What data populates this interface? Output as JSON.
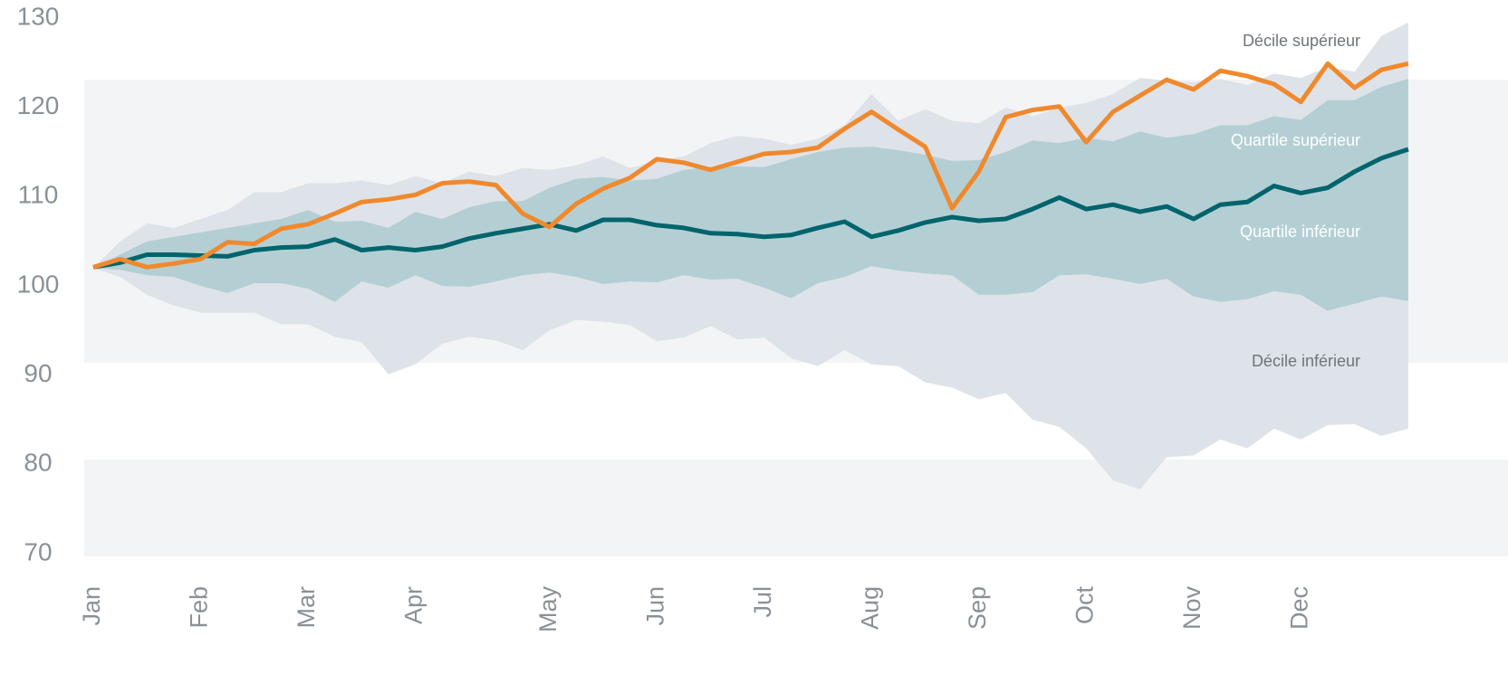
{
  "chart_data": {
    "type": "fan",
    "categories": [
      "Jan",
      null,
      null,
      null,
      "Feb",
      null,
      null,
      null,
      "Mar",
      null,
      null,
      null,
      "Apr",
      null,
      null,
      null,
      null,
      "May",
      null,
      null,
      null,
      "Jun",
      null,
      null,
      null,
      "Jul",
      null,
      null,
      null,
      "Aug",
      null,
      null,
      null,
      "Sep",
      null,
      null,
      null,
      "Oct",
      null,
      null,
      null,
      "Nov",
      null,
      null,
      null,
      "Dec",
      null,
      null,
      null,
      null
    ],
    "series": [
      {
        "name": "Décile supérieur",
        "color": "#dee3e9",
        "values": [
          102,
          105,
          107,
          106.5,
          107.5,
          108.5,
          110.5,
          110.5,
          111.5,
          111.5,
          111.8,
          111.3,
          112.3,
          111.5,
          112.8,
          112.3,
          113.2,
          113,
          113.5,
          114.5,
          113.2,
          114,
          114.5,
          116,
          116.8,
          116.5,
          115.8,
          116.5,
          118,
          121.5,
          118.5,
          119.8,
          118.5,
          118.2,
          120,
          119,
          120,
          120.5,
          121.5,
          123.3,
          123,
          122.8,
          123.2,
          122.5,
          123.8,
          123.3,
          124.5,
          124,
          128,
          129.5
        ]
      },
      {
        "name": "Quartile supérieur",
        "color": "#b4cfd4",
        "values": [
          102,
          103.5,
          105,
          105.5,
          106,
          106.5,
          107,
          107.5,
          108.5,
          107.2,
          107.3,
          106.5,
          108.3,
          107.5,
          108.8,
          109.5,
          109.5,
          111,
          112,
          112.2,
          111.8,
          112,
          113,
          113.3,
          113.4,
          113.3,
          114.2,
          115,
          115.5,
          115.6,
          115.2,
          114.7,
          114,
          114.1,
          115,
          116.3,
          116,
          116.6,
          116.2,
          117.3,
          116.6,
          117,
          118,
          118,
          119,
          118.6,
          120.8,
          120.8,
          122.3,
          123.2
        ]
      },
      {
        "name": "Quartile inférieur",
        "color": "#b4cfd4",
        "values": [
          102,
          101.8,
          101.2,
          101,
          100,
          99.2,
          100.3,
          100.3,
          99.7,
          98.2,
          100.5,
          99.8,
          101.2,
          100,
          99.9,
          100.5,
          101.2,
          101.5,
          101,
          100.2,
          100.5,
          100.4,
          101.2,
          100.7,
          100.8,
          99.8,
          98.6,
          100.3,
          101,
          102.2,
          101.7,
          101.4,
          101.2,
          99,
          99,
          99.3,
          101.2,
          101.3,
          100.8,
          100.2,
          100.8,
          98.8,
          98.2,
          98.5,
          99.4,
          99,
          97.2,
          98,
          98.8,
          98.3
        ]
      },
      {
        "name": "Décile inférieur",
        "color": "#dee3e9",
        "values": [
          102,
          101,
          99,
          97.8,
          97,
          97,
          97,
          95.7,
          95.7,
          94.3,
          93.7,
          90.1,
          91.2,
          93.5,
          94.3,
          93.9,
          92.8,
          95,
          96.2,
          96,
          95.6,
          93.8,
          94.2,
          95.5,
          94,
          94.2,
          91.9,
          91,
          92.8,
          91.2,
          91,
          89.2,
          88.6,
          87.3,
          88,
          85,
          84.2,
          81.8,
          78.2,
          77.2,
          80.8,
          81,
          82.8,
          81.8,
          84,
          82.8,
          84.4,
          84.5,
          83.2,
          84
        ]
      },
      {
        "color": "#00646c",
        "values": [
          102.1,
          102.6,
          103.5,
          103.5,
          103.4,
          103.3,
          104,
          104.3,
          104.4,
          105.2,
          104,
          104.3,
          104,
          104.4,
          105.3,
          105.9,
          106.4,
          106.9,
          106.2,
          107.4,
          107.4,
          106.8,
          106.5,
          105.9,
          105.8,
          105.5,
          105.7,
          106.5,
          107.2,
          105.5,
          106.2,
          107.1,
          107.7,
          107.3,
          107.5,
          108.6,
          109.9,
          108.6,
          109.1,
          108.3,
          108.9,
          107.5,
          109.1,
          109.4,
          111.2,
          110.4,
          111,
          112.8,
          114.3,
          115.3
        ]
      },
      {
        "color": "#f0892d",
        "values": [
          102.1,
          103,
          102.1,
          102.5,
          103,
          104.9,
          104.7,
          106.4,
          106.9,
          108.1,
          109.4,
          109.7,
          110.2,
          111.5,
          111.7,
          111.3,
          108.1,
          106.6,
          109.2,
          110.9,
          112.1,
          114.2,
          113.8,
          113,
          113.9,
          114.8,
          115,
          115.5,
          117.6,
          119.5,
          117.5,
          115.6,
          108.7,
          112.8,
          118.9,
          119.7,
          120.1,
          116.1,
          119.5,
          121.3,
          123.1,
          122,
          124.1,
          123.5,
          122.6,
          120.6,
          124.9,
          122.2,
          124.2,
          124.9
        ]
      }
    ],
    "ylim": [
      70,
      130
    ],
    "yticks": [
      70,
      80,
      90,
      100,
      110,
      120,
      130
    ]
  }
}
